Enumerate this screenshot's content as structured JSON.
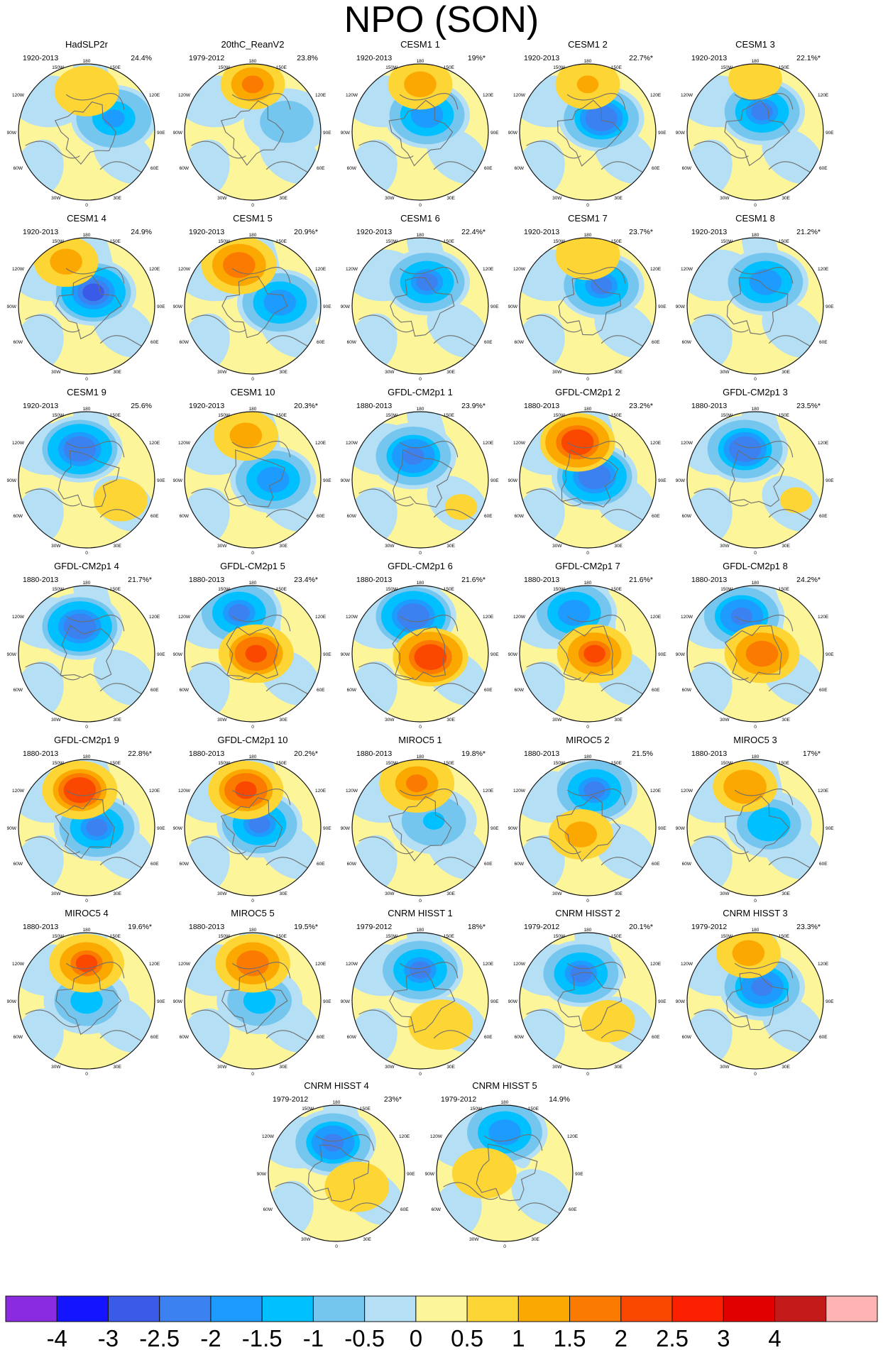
{
  "chart_data": {
    "type": "polar-map-panels",
    "title": "NPO (SON)",
    "panels": [
      {
        "name": "HadSLP2r",
        "period": "1920-2013",
        "variance": "24.4%",
        "pos": {
          "lat": 0.6,
          "lon": 0.0,
          "amp": 1.1
        },
        "neg": {
          "lat": 0.2,
          "lon": 0.4,
          "amp": -1.8
        }
      },
      {
        "name": "20thC_ReanV2",
        "period": "1979-2012",
        "variance": "23.8%",
        "pos": {
          "lat": 0.7,
          "lon": 0.0,
          "amp": 1.7
        },
        "neg": {
          "lat": 0.15,
          "lon": 0.5,
          "amp": -0.8
        }
      },
      {
        "name": "CESM1 1",
        "period": "1920-2013",
        "variance": "19%*",
        "pos": {
          "lat": 0.7,
          "lon": 0.0,
          "amp": 1.3
        },
        "neg": {
          "lat": 0.25,
          "lon": 0.1,
          "amp": -2.2
        }
      },
      {
        "name": "CESM1 2",
        "period": "1920-2013",
        "variance": "22.7%*",
        "pos": {
          "lat": 0.7,
          "lon": 0.0,
          "amp": 1.2
        },
        "neg": {
          "lat": 0.2,
          "lon": 0.2,
          "amp": -2.7
        }
      },
      {
        "name": "CESM1 3",
        "period": "1920-2013",
        "variance": "22.1%*",
        "pos": {
          "lat": 0.78,
          "lon": 0.0,
          "amp": 0.9
        },
        "neg": {
          "lat": 0.3,
          "lon": 0.1,
          "amp": -2.4
        }
      },
      {
        "name": "CESM1 4",
        "period": "1920-2013",
        "variance": "24.9%",
        "pos": {
          "lat": 0.65,
          "lon": -0.3,
          "amp": 1.4
        },
        "neg": {
          "lat": 0.2,
          "lon": 0.1,
          "amp": -3.0
        }
      },
      {
        "name": "CESM1 5",
        "period": "1920-2013",
        "variance": "20.9%*",
        "pos": {
          "lat": 0.6,
          "lon": -0.2,
          "amp": 2.2
        },
        "neg": {
          "lat": 0.05,
          "lon": 0.4,
          "amp": -2.2
        }
      },
      {
        "name": "CESM1 6",
        "period": "1920-2013",
        "variance": "22.4%*",
        "pos": {
          "lat": 0.8,
          "lon": 0.0,
          "amp": 0.5
        },
        "neg": {
          "lat": 0.35,
          "lon": 0.1,
          "amp": -2.3
        }
      },
      {
        "name": "CESM1 7",
        "period": "1920-2013",
        "variance": "23.7%*",
        "pos": {
          "lat": 0.75,
          "lon": 0.0,
          "amp": 1.0
        },
        "neg": {
          "lat": 0.3,
          "lon": 0.2,
          "amp": -2.3
        }
      },
      {
        "name": "CESM1 8",
        "period": "1920-2013",
        "variance": "21.2%*",
        "pos": {
          "lat": 0.85,
          "lon": 0.0,
          "amp": 0.5
        },
        "neg": {
          "lat": 0.35,
          "lon": 0.15,
          "amp": -2.2
        }
      },
      {
        "name": "CESM1 9",
        "period": "1920-2013",
        "variance": "25.6%",
        "pos": {
          "lat": -0.3,
          "lon": 0.5,
          "amp": 0.8
        },
        "neg": {
          "lat": 0.45,
          "lon": -0.1,
          "amp": -2.8
        }
      },
      {
        "name": "CESM1 10",
        "period": "1920-2013",
        "variance": "20.3%*",
        "pos": {
          "lat": 0.65,
          "lon": -0.1,
          "amp": 1.4
        },
        "neg": {
          "lat": 0.0,
          "lon": 0.3,
          "amp": -2.1
        }
      },
      {
        "name": "GFDL-CM2p1 1",
        "period": "1880-2013",
        "variance": "23.9%*",
        "pos": {
          "lat": -0.4,
          "lon": 0.6,
          "amp": 0.6
        },
        "neg": {
          "lat": 0.35,
          "lon": -0.1,
          "amp": -2.6
        }
      },
      {
        "name": "GFDL-CM2p1 2",
        "period": "1880-2013",
        "variance": "23.2%*",
        "pos": {
          "lat": 0.55,
          "lon": -0.15,
          "amp": 2.8
        },
        "neg": {
          "lat": 0.05,
          "lon": 0.1,
          "amp": -2.8
        }
      },
      {
        "name": "GFDL-CM2p1 3",
        "period": "1880-2013",
        "variance": "23.5%*",
        "pos": {
          "lat": -0.3,
          "lon": 0.6,
          "amp": 0.6
        },
        "neg": {
          "lat": 0.45,
          "lon": -0.15,
          "amp": -2.7
        }
      },
      {
        "name": "GFDL-CM2p1 4",
        "period": "1880-2013",
        "variance": "21.7%*",
        "pos": {
          "lat": -0.5,
          "lon": 0.4,
          "amp": 0.5
        },
        "neg": {
          "lat": 0.4,
          "lon": -0.1,
          "amp": -2.8
        }
      },
      {
        "name": "GFDL-CM2p1 5",
        "period": "1880-2013",
        "variance": "23.4%*",
        "pos": {
          "lat": 0.0,
          "lon": 0.05,
          "amp": 2.6
        },
        "neg": {
          "lat": 0.6,
          "lon": -0.2,
          "amp": -2.4
        }
      },
      {
        "name": "GFDL-CM2p1 6",
        "period": "1880-2013",
        "variance": "21.6%*",
        "pos": {
          "lat": -0.05,
          "lon": 0.15,
          "amp": 2.8
        },
        "neg": {
          "lat": 0.55,
          "lon": -0.1,
          "amp": -2.8
        }
      },
      {
        "name": "GFDL-CM2p1 7",
        "period": "1880-2013",
        "variance": "21.6%*",
        "pos": {
          "lat": 0.0,
          "lon": 0.1,
          "amp": 2.4
        },
        "neg": {
          "lat": 0.6,
          "lon": -0.2,
          "amp": -2.2
        }
      },
      {
        "name": "GFDL-CM2p1 8",
        "period": "1880-2013",
        "variance": "24.2%*",
        "pos": {
          "lat": 0.0,
          "lon": 0.1,
          "amp": 2.2
        },
        "neg": {
          "lat": 0.55,
          "lon": -0.2,
          "amp": -2.5
        }
      },
      {
        "name": "GFDL-CM2p1 9",
        "period": "1880-2013",
        "variance": "22.8%*",
        "pos": {
          "lat": 0.55,
          "lon": -0.1,
          "amp": 2.7
        },
        "neg": {
          "lat": 0.0,
          "lon": 0.15,
          "amp": -2.3
        }
      },
      {
        "name": "GFDL-CM2p1 10",
        "period": "1880-2013",
        "variance": "20.2%*",
        "pos": {
          "lat": 0.55,
          "lon": -0.1,
          "amp": 2.6
        },
        "neg": {
          "lat": 0.05,
          "lon": 0.1,
          "amp": -2.3
        }
      },
      {
        "name": "MIROC5 1",
        "period": "1880-2013",
        "variance": "19.8%*",
        "pos": {
          "lat": 0.65,
          "lon": -0.05,
          "amp": 1.8
        },
        "neg": {
          "lat": 0.1,
          "lon": 0.2,
          "amp": -1.2
        }
      },
      {
        "name": "MIROC5 2",
        "period": "1880-2013",
        "variance": "21.5%",
        "pos": {
          "lat": -0.1,
          "lon": -0.1,
          "amp": 1.5
        },
        "neg": {
          "lat": 0.55,
          "lon": 0.1,
          "amp": -2.3
        }
      },
      {
        "name": "MIROC5 3",
        "period": "1880-2013",
        "variance": "17%*",
        "pos": {
          "lat": 0.6,
          "lon": -0.15,
          "amp": 1.6
        },
        "neg": {
          "lat": 0.05,
          "lon": 0.2,
          "amp": -1.6
        }
      },
      {
        "name": "MIROC5 4",
        "period": "1880-2013",
        "variance": "19.6%*",
        "pos": {
          "lat": 0.55,
          "lon": 0.0,
          "amp": 2.3
        },
        "neg": {
          "lat": 0.0,
          "lon": 0.0,
          "amp": -1.4
        }
      },
      {
        "name": "MIROC5 5",
        "period": "1880-2013",
        "variance": "19.5%*",
        "pos": {
          "lat": 0.55,
          "lon": 0.0,
          "amp": 2.0
        },
        "neg": {
          "lat": 0.0,
          "lon": 0.1,
          "amp": -1.3
        }
      },
      {
        "name": "CNRM HISST 1",
        "period": "1979-2012",
        "variance": "18%*",
        "pos": {
          "lat": -0.35,
          "lon": 0.3,
          "amp": 1.0
        },
        "neg": {
          "lat": 0.45,
          "lon": 0.0,
          "amp": -2.4
        }
      },
      {
        "name": "CNRM HISST 2",
        "period": "1979-2012",
        "variance": "20.1%*",
        "pos": {
          "lat": -0.3,
          "lon": 0.3,
          "amp": 0.9
        },
        "neg": {
          "lat": 0.4,
          "lon": -0.1,
          "amp": -2.4
        }
      },
      {
        "name": "CNRM HISST 3",
        "period": "1979-2012",
        "variance": "23.3%*",
        "pos": {
          "lat": 0.7,
          "lon": -0.1,
          "amp": 1.4
        },
        "neg": {
          "lat": 0.2,
          "lon": 0.1,
          "amp": -2.6
        }
      },
      {
        "name": "CNRM HISST 4",
        "period": "1979-2012",
        "variance": "23%*",
        "pos": {
          "lat": -0.2,
          "lon": 0.3,
          "amp": 1.1
        },
        "neg": {
          "lat": 0.45,
          "lon": -0.05,
          "amp": -2.6
        }
      },
      {
        "name": "CNRM HISST 5",
        "period": "1979-2012",
        "variance": "14.9%",
        "pos": {
          "lat": 0.0,
          "lon": -0.3,
          "amp": 1.1
        },
        "neg": {
          "lat": 0.6,
          "lon": 0.0,
          "amp": -2.1
        }
      }
    ],
    "lon_labels": [
      "180",
      "150W",
      "150E",
      "120W",
      "120E",
      "90W",
      "90E",
      "60W",
      "60E",
      "30W",
      "30E",
      "0"
    ],
    "colorbar": {
      "labels": [
        "-4",
        "-3",
        "-2.5",
        "-2",
        "-1.5",
        "-1",
        "-0.5",
        "0",
        "0.5",
        "1",
        "1.5",
        "2",
        "2.5",
        "3",
        "4"
      ],
      "colors": [
        "#8a2be2",
        "#1414ff",
        "#3a5be8",
        "#3b82f0",
        "#1e9bff",
        "#00c0ff",
        "#74c6ef",
        "#b5dff5",
        "#fdf59a",
        "#fdd535",
        "#fba800",
        "#fb7a00",
        "#fa4800",
        "#fa2000",
        "#e00000",
        "#c41a1a",
        "#ffb4b4"
      ]
    }
  }
}
